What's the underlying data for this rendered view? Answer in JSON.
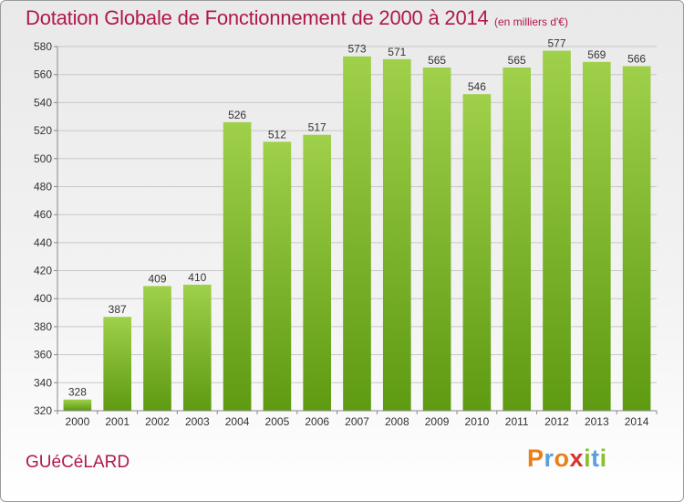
{
  "header": {
    "title": "Dotation Globale de Fonctionnement de 2000 à 2014",
    "unit": "(en milliers d'€)"
  },
  "footer": {
    "commune": "GUéCéLARD",
    "brand_letters": [
      "P",
      "r",
      "o",
      "x",
      "i",
      "t",
      "i"
    ],
    "brand_colors": [
      "#e8801a",
      "#5aa0d8",
      "#e8801a",
      "#d8342c",
      "#8cbf2a",
      "#5aa0d8",
      "#8cbf2a"
    ]
  },
  "colors": {
    "bar_light": "#9fd04a",
    "bar_dark": "#5e9a12",
    "grid": "#c8c8c8",
    "axis": "#888888"
  },
  "chart_data": {
    "type": "bar",
    "title": "Dotation Globale de Fonctionnement de 2000 à 2014",
    "xlabel": "",
    "ylabel": "",
    "categories": [
      "2000",
      "2001",
      "2002",
      "2003",
      "2004",
      "2005",
      "2006",
      "2007",
      "2008",
      "2009",
      "2010",
      "2011",
      "2012",
      "2013",
      "2014"
    ],
    "values": [
      328,
      387,
      409,
      410,
      526,
      512,
      517,
      573,
      571,
      565,
      546,
      565,
      577,
      569,
      566
    ],
    "ylim": [
      320,
      580
    ],
    "yticks": [
      320,
      340,
      360,
      380,
      400,
      420,
      440,
      460,
      480,
      500,
      520,
      540,
      560,
      580
    ],
    "grid": true,
    "legend": "none"
  }
}
